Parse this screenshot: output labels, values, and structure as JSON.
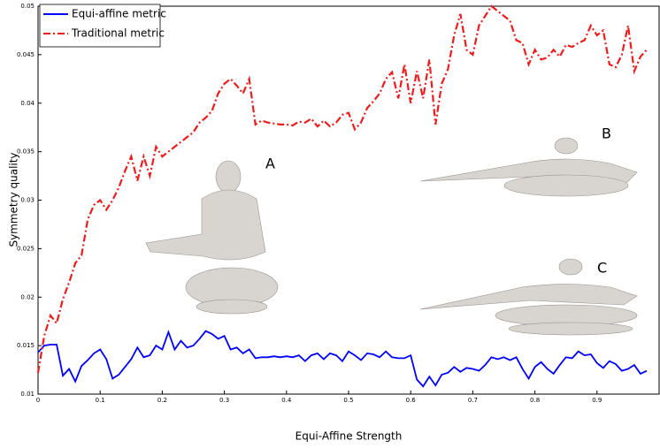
{
  "chart_data": {
    "type": "line",
    "x_label": "Equi-Affine Strength",
    "y_label": "Symmetry quality",
    "annotations": [
      "A",
      "B",
      "C"
    ],
    "xlim": [
      0,
      1
    ],
    "ylim": [
      0.01,
      0.05
    ],
    "xticks": [
      0,
      0.1,
      0.2,
      0.3,
      0.4,
      0.5,
      0.6,
      0.7,
      0.8,
      0.9
    ],
    "yticks": [
      0.01,
      0.015,
      0.02,
      0.025,
      0.03,
      0.035,
      0.04,
      0.045,
      0.05
    ],
    "legend": "upper left",
    "x": [
      0,
      0.01,
      0.02,
      0.03,
      0.04,
      0.05,
      0.06,
      0.07,
      0.08,
      0.09,
      0.1,
      0.11,
      0.12,
      0.13,
      0.14,
      0.15,
      0.16,
      0.17,
      0.18,
      0.19,
      0.2,
      0.21,
      0.22,
      0.23,
      0.24,
      0.25,
      0.26,
      0.27,
      0.28,
      0.29,
      0.3,
      0.31,
      0.32,
      0.33,
      0.34,
      0.35,
      0.36,
      0.37,
      0.38,
      0.39,
      0.4,
      0.41,
      0.42,
      0.43,
      0.44,
      0.45,
      0.46,
      0.47,
      0.48,
      0.49,
      0.5,
      0.51,
      0.52,
      0.53,
      0.54,
      0.55,
      0.56,
      0.57,
      0.58,
      0.59,
      0.6,
      0.61,
      0.62,
      0.63,
      0.64,
      0.65,
      0.66,
      0.67,
      0.68,
      0.69,
      0.7,
      0.71,
      0.72,
      0.73,
      0.74,
      0.75,
      0.76,
      0.77,
      0.78,
      0.79,
      0.8,
      0.81,
      0.82,
      0.83,
      0.84,
      0.85,
      0.86,
      0.87,
      0.88,
      0.89,
      0.9,
      0.91,
      0.92,
      0.93,
      0.94,
      0.95,
      0.96,
      0.97,
      0.98
    ],
    "series": [
      {
        "name": "Equi-affine metric",
        "color": "#0000ff",
        "style": "solid",
        "values": [
          0.0143,
          0.015,
          0.0151,
          0.0151,
          0.0119,
          0.0126,
          0.0113,
          0.0129,
          0.0135,
          0.0142,
          0.0146,
          0.0136,
          0.0116,
          0.012,
          0.0128,
          0.0136,
          0.0148,
          0.0138,
          0.014,
          0.015,
          0.0146,
          0.0164,
          0.0146,
          0.0155,
          0.0148,
          0.015,
          0.0157,
          0.0165,
          0.0162,
          0.0157,
          0.016,
          0.0146,
          0.0148,
          0.0142,
          0.0146,
          0.0137,
          0.0138,
          0.0138,
          0.0139,
          0.0138,
          0.0139,
          0.0138,
          0.014,
          0.0134,
          0.014,
          0.0142,
          0.0136,
          0.0142,
          0.014,
          0.0134,
          0.0144,
          0.014,
          0.0135,
          0.0142,
          0.0141,
          0.0138,
          0.0144,
          0.0138,
          0.0137,
          0.0137,
          0.014,
          0.0115,
          0.0108,
          0.0118,
          0.0109,
          0.012,
          0.0122,
          0.0128,
          0.0123,
          0.0127,
          0.0126,
          0.0124,
          0.013,
          0.0138,
          0.0136,
          0.0138,
          0.0135,
          0.0138,
          0.0126,
          0.0116,
          0.0128,
          0.0133,
          0.0126,
          0.0121,
          0.013,
          0.0138,
          0.0137,
          0.0144,
          0.014,
          0.0141,
          0.0132,
          0.0127,
          0.0134,
          0.0131,
          0.0124,
          0.0126,
          0.013,
          0.0121,
          0.0124
        ]
      },
      {
        "name": "Traditional metric",
        "color": "#ee1c1c",
        "style": "dashdot",
        "values": [
          0.0122,
          0.016,
          0.0181,
          0.0173,
          0.0198,
          0.0215,
          0.0235,
          0.0243,
          0.028,
          0.0295,
          0.03,
          0.029,
          0.03,
          0.0313,
          0.033,
          0.0345,
          0.032,
          0.0345,
          0.0325,
          0.0355,
          0.0345,
          0.035,
          0.0355,
          0.036,
          0.0365,
          0.037,
          0.038,
          0.0385,
          0.0392,
          0.041,
          0.042,
          0.0425,
          0.0418,
          0.041,
          0.0425,
          0.0378,
          0.0382,
          0.038,
          0.0379,
          0.0378,
          0.0378,
          0.0377,
          0.0381,
          0.038,
          0.0384,
          0.0376,
          0.0382,
          0.0376,
          0.038,
          0.0388,
          0.039,
          0.0373,
          0.038,
          0.0395,
          0.0402,
          0.041,
          0.0425,
          0.0432,
          0.0405,
          0.044,
          0.04,
          0.0433,
          0.0405,
          0.0445,
          0.0378,
          0.042,
          0.0435,
          0.047,
          0.0492,
          0.0455,
          0.045,
          0.048,
          0.049,
          0.05,
          0.0495,
          0.049,
          0.0485,
          0.0465,
          0.0462,
          0.044,
          0.0455,
          0.0445,
          0.0447,
          0.0455,
          0.0448,
          0.046,
          0.0458,
          0.0462,
          0.0465,
          0.048,
          0.047,
          0.0475,
          0.044,
          0.0437,
          0.045,
          0.048,
          0.0433,
          0.0448,
          0.0455
        ]
      }
    ]
  }
}
